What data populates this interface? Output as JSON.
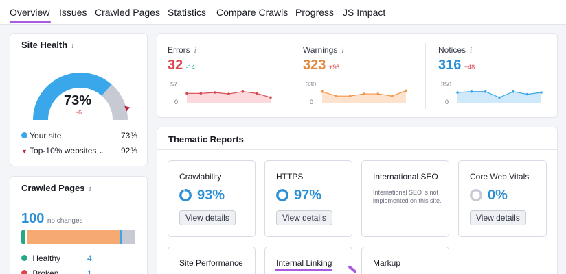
{
  "tabs": [
    {
      "label": "Overview",
      "active": true
    },
    {
      "label": "Issues"
    },
    {
      "label": "Crawled Pages"
    },
    {
      "label": "Statistics"
    },
    {
      "label": "Compare Crawls"
    },
    {
      "label": "Progress"
    },
    {
      "label": "JS Impact"
    }
  ],
  "site_health": {
    "title": "Site Health",
    "info": "i",
    "score": "73%",
    "delta": "-6",
    "gauge_fraction": 0.73,
    "top_fraction": 0.92,
    "your_site_label": "Your site",
    "your_site_value": "73%",
    "top_label": "Top-10% websites",
    "top_value": "92%",
    "colors": {
      "site": "#3aa7ea",
      "top": "#b5283e",
      "track": "#c7cad3"
    }
  },
  "crawled_pages": {
    "title": "Crawled Pages",
    "info": "i",
    "count": "100",
    "change": "no changes",
    "bar": [
      {
        "name": "healthy",
        "fraction": 0.04,
        "color": "#27a884"
      },
      {
        "name": "broken",
        "fraction": 0.01,
        "color": "#d9484f"
      },
      {
        "name": "have-issues",
        "fraction": 0.81,
        "color": "#f6a970"
      },
      {
        "name": "redirects",
        "fraction": 0.02,
        "color": "#3aa7ea"
      },
      {
        "name": "blocked",
        "fraction": 0.12,
        "color": "#c7cad3"
      }
    ],
    "legend": [
      {
        "label": "Healthy",
        "value": "4",
        "color": "#27a884"
      },
      {
        "label": "Broken",
        "value": "1",
        "color": "#d9484f"
      }
    ]
  },
  "metrics": [
    {
      "label": "Errors",
      "info": "i",
      "value": "32",
      "delta": "-14",
      "value_color": "#d9484f",
      "delta_color": "#27a884",
      "y_top": "57",
      "y_bottom": "0",
      "line_color": "#d9484f",
      "fill_color": "#fbd9dd",
      "points": [
        0.55,
        0.55,
        0.5,
        0.58,
        0.45,
        0.55,
        0.78
      ]
    },
    {
      "label": "Warnings",
      "info": "i",
      "value": "323",
      "delta": "+96",
      "value_color": "#e3873a",
      "delta_color": "#d9484f",
      "y_top": "330",
      "y_bottom": "0",
      "line_color": "#f19647",
      "fill_color": "#fde3cd",
      "points": [
        0.45,
        0.7,
        0.7,
        0.58,
        0.58,
        0.7,
        0.4
      ]
    },
    {
      "label": "Notices",
      "info": "i",
      "value": "316",
      "delta": "+48",
      "value_color": "#2b8fd6",
      "delta_color": "#d9484f",
      "y_top": "350",
      "y_bottom": "0",
      "line_color": "#3aa7ea",
      "fill_color": "#cfe9fa",
      "points": [
        0.5,
        0.45,
        0.45,
        0.78,
        0.45,
        0.6,
        0.5
      ]
    }
  ],
  "thematic": {
    "title": "Thematic Reports",
    "reports": [
      {
        "title": "Crawlability",
        "pct": "93%",
        "fraction": 0.93,
        "button": "View details"
      },
      {
        "title": "HTTPS",
        "pct": "97%",
        "fraction": 0.97,
        "button": "View details"
      },
      {
        "title": "International SEO",
        "desc": "International SEO is not implemented on this site."
      },
      {
        "title": "Core Web Vitals",
        "pct": "0%",
        "fraction": 0.0,
        "button": "View details"
      },
      {
        "title": "Site Performance"
      },
      {
        "title": "Internal Linking"
      },
      {
        "title": "Markup"
      }
    ]
  }
}
